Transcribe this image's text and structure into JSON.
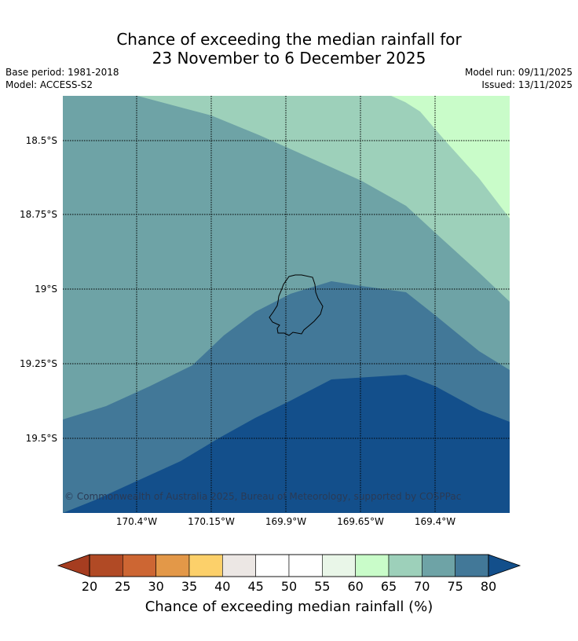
{
  "title_line1": "Chance of exceeding the median rainfall for",
  "title_line2": "23 November to 6 December 2025",
  "base_period": "Base period: 1981-2018",
  "model": "Model: ACCESS-S2",
  "model_run": "Model run: 09/11/2025",
  "issued": "Issued: 13/11/2025",
  "lat_labels": [
    "18.5°S",
    "18.75°S",
    "19°S",
    "19.25°S",
    "19.5°S"
  ],
  "lon_labels": [
    "170.4°W",
    "170.15°W",
    "169.9°W",
    "169.65°W",
    "169.4°W"
  ],
  "copyright": "© Commonwealth of Australia 2025, Bureau of Meteorology, supported by COSPPac",
  "colorbar": {
    "title": "Chance of exceeding median rainfall (%)",
    "ticks": [
      "20",
      "25",
      "30",
      "35",
      "40",
      "45",
      "50",
      "55",
      "60",
      "65",
      "70",
      "75",
      "80"
    ],
    "colors": [
      "#b14a25",
      "#cd6633",
      "#e39848",
      "#fcd06a",
      "#ece7e4",
      "#ffffff",
      "#ffffff",
      "#e9f6e8",
      "#c9fcc9",
      "#9dd0ba",
      "#6ea3a6",
      "#427898"
    ],
    "under_color": "#a63d20",
    "over_color": "#134f8b"
  },
  "map_colors": {
    "zone_60_65": "#c9fcc9",
    "zone_65_70": "#9dd0ba",
    "zone_70_75": "#6ea3a6",
    "zone_75_80": "#427898",
    "zone_above_80": "#134f8b"
  }
}
